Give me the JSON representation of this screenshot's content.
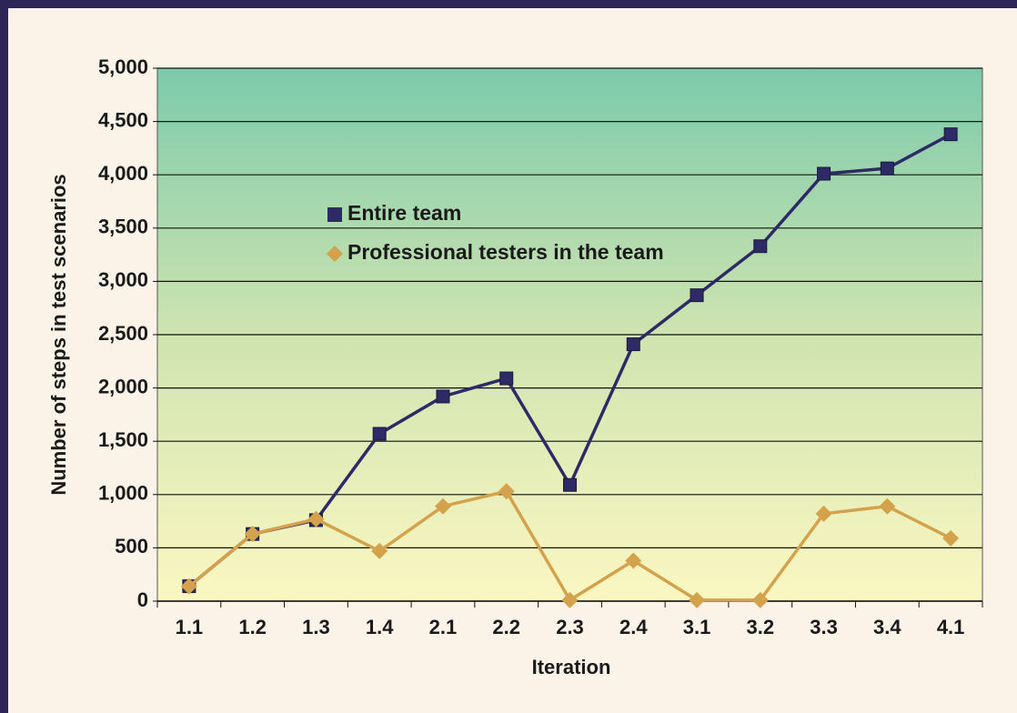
{
  "chart_data": {
    "type": "line",
    "x_label": "Iteration",
    "y_label": "Number of steps in test scenarios",
    "categories": [
      "1.1",
      "1.2",
      "1.3",
      "1.4",
      "2.1",
      "2.2",
      "2.3",
      "2.4",
      "3.1",
      "3.2",
      "3.3",
      "3.4",
      "4.1"
    ],
    "series": [
      {
        "name": "Entire team",
        "color": "#2e2a66",
        "marker": "square",
        "values": [
          140,
          630,
          760,
          1570,
          1920,
          2090,
          1090,
          2410,
          2870,
          3330,
          4010,
          4060,
          4380
        ]
      },
      {
        "name": "Professional testers in the team",
        "color": "#d4a24c",
        "marker": "diamond",
        "values": [
          140,
          630,
          770,
          470,
          890,
          1030,
          10,
          380,
          10,
          10,
          820,
          890,
          590
        ]
      }
    ],
    "ylim": [
      0,
      5000
    ],
    "yticks": [
      0,
      500,
      {
        "value": 1000,
        "label": "1,000"
      },
      {
        "value": 1500,
        "label": "1,500"
      },
      {
        "value": 2000,
        "label": "2,000"
      },
      {
        "value": 2500,
        "label": "2,500"
      },
      {
        "value": 3000,
        "label": "3,000"
      },
      {
        "value": 3500,
        "label": "3,500"
      },
      {
        "value": 4000,
        "label": "4,000"
      },
      {
        "value": 4500,
        "label": "4,500"
      },
      {
        "value": 5000,
        "label": "5,000"
      }
    ],
    "grid": true
  }
}
